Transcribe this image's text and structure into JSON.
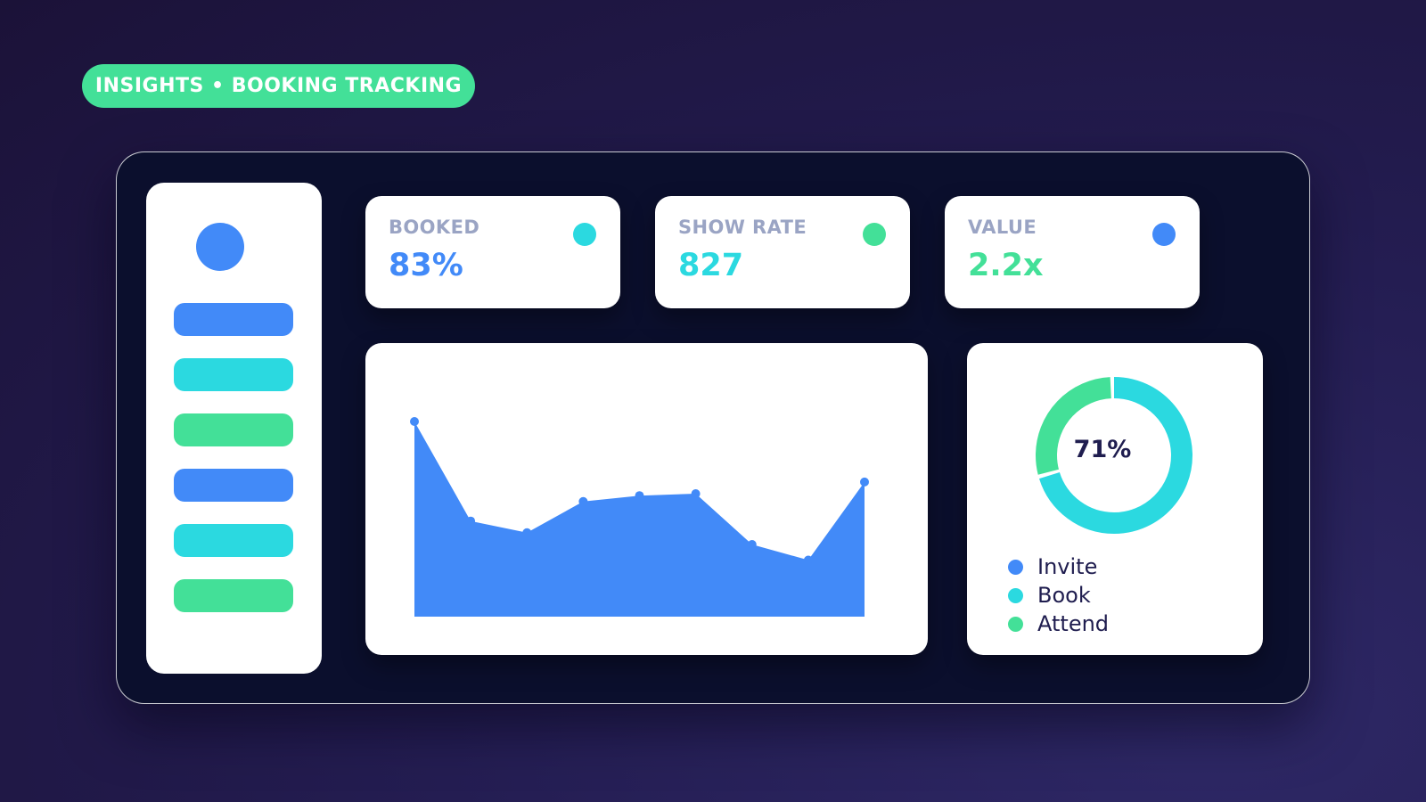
{
  "header": {
    "pill_label": "INSIGHTS • BOOKING TRACKING"
  },
  "colors": {
    "blue": "#428af8",
    "cyan": "#2bd9e0",
    "green": "#43e098",
    "dark_text": "#1f1d4f",
    "muted_text": "#9aa4c4"
  },
  "sidebar": {
    "avatar": {
      "icon": "avatar",
      "color": "#428af8"
    },
    "items": [
      {
        "color": "#428af8"
      },
      {
        "color": "#2bd9e0"
      },
      {
        "color": "#43e098"
      },
      {
        "color": "#428af8"
      },
      {
        "color": "#2bd9e0"
      },
      {
        "color": "#43e098"
      }
    ]
  },
  "stats": [
    {
      "label": "BOOKED",
      "value": "83%",
      "value_color": "#428af8",
      "dot_color": "#2bd9e0"
    },
    {
      "label": "SHOW RATE",
      "value": "827",
      "value_color": "#2bd9e0",
      "dot_color": "#43e098"
    },
    {
      "label": "VALUE",
      "value": "2.2x",
      "value_color": "#43e098",
      "dot_color": "#428af8"
    }
  ],
  "chart_data": [
    {
      "type": "area",
      "title": "",
      "xlabel": "",
      "ylabel": "",
      "x": [
        1,
        2,
        3,
        4,
        5,
        6,
        7,
        8,
        9
      ],
      "series": [
        {
          "values": [
            100,
            49,
            43,
            59,
            62,
            63,
            37,
            29,
            69
          ],
          "color": "#428af8"
        }
      ],
      "ylim": [
        0,
        100
      ],
      "grid": false
    },
    {
      "type": "pie",
      "style": "donut",
      "center_label": "71%",
      "categories": [
        "Invite",
        "Book",
        "Attend"
      ],
      "values": [
        0,
        71,
        29
      ],
      "colors": [
        "#428af8",
        "#2bd9e0",
        "#43e098"
      ],
      "legend": "bottom"
    }
  ],
  "legend": [
    {
      "label": "Invite",
      "color": "#428af8"
    },
    {
      "label": "Book",
      "color": "#2bd9e0"
    },
    {
      "label": "Attend",
      "color": "#43e098"
    }
  ]
}
